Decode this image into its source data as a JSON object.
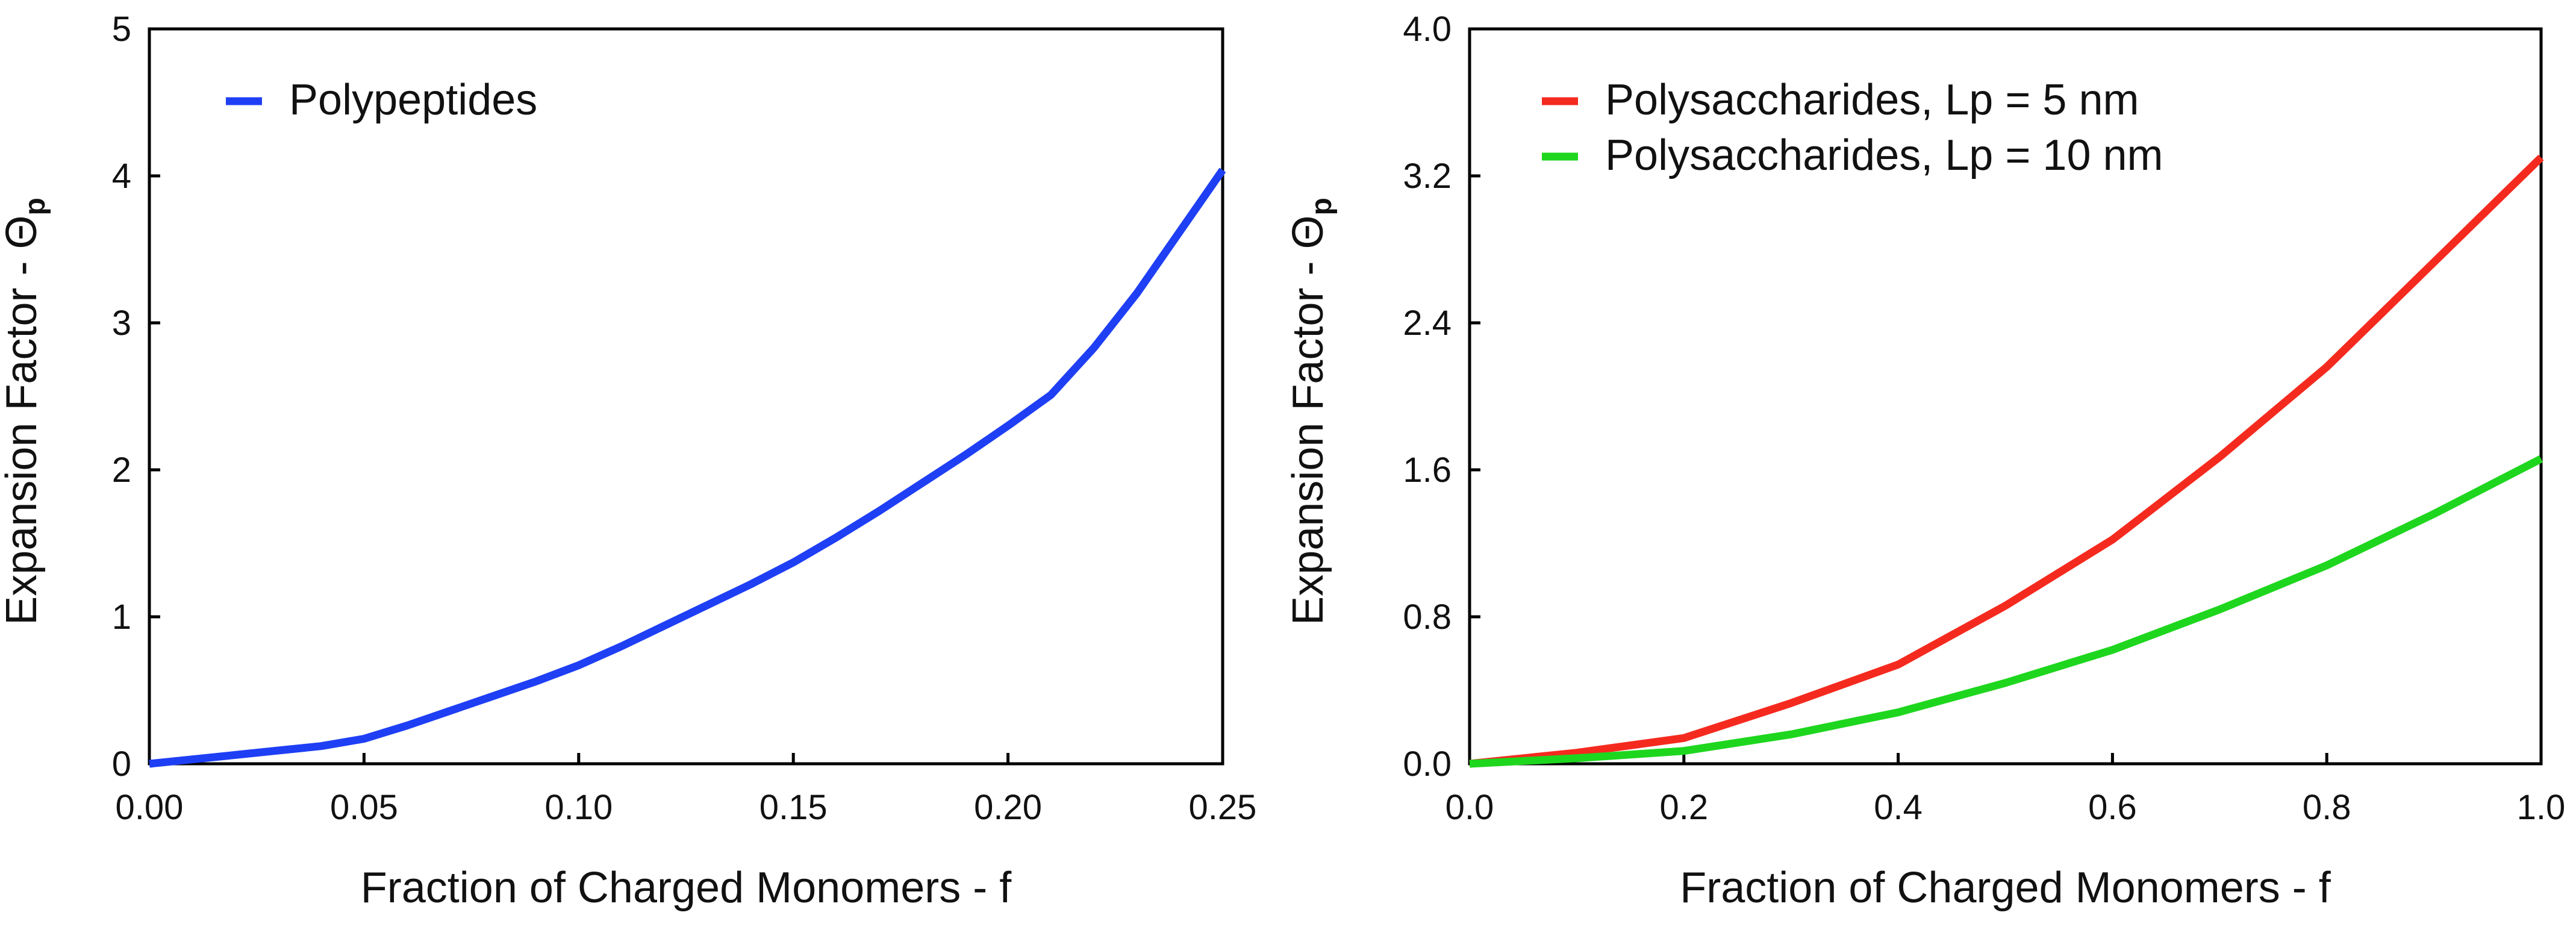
{
  "chart_data": [
    {
      "type": "line",
      "xlabel": "Fraction of Charged Monomers - f",
      "ylabel": "Expansion Factor - Θ",
      "ylabel_sub": "p",
      "xlim": [
        0,
        0.25
      ],
      "ylim": [
        0,
        5
      ],
      "xticks": [
        "0.00",
        "0.05",
        "0.10",
        "0.15",
        "0.20",
        "0.25"
      ],
      "yticks": [
        "0",
        "1",
        "2",
        "3",
        "4",
        "5"
      ],
      "grid": false,
      "legend_position": "top-left",
      "series": [
        {
          "name": "Polypeptides",
          "color": "#1f3ff5",
          "x": [
            0.0,
            0.01,
            0.02,
            0.03,
            0.04,
            0.05,
            0.06,
            0.07,
            0.08,
            0.09,
            0.1,
            0.11,
            0.12,
            0.13,
            0.14,
            0.15,
            0.16,
            0.17,
            0.18,
            0.19,
            0.2,
            0.21,
            0.22,
            0.23,
            0.24,
            0.25
          ],
          "y": [
            0.0,
            0.03,
            0.06,
            0.09,
            0.12,
            0.17,
            0.26,
            0.36,
            0.46,
            0.56,
            0.67,
            0.8,
            0.94,
            1.08,
            1.22,
            1.37,
            1.54,
            1.72,
            1.91,
            2.1,
            2.3,
            2.51,
            2.83,
            3.2,
            3.62,
            4.04
          ]
        }
      ]
    },
    {
      "type": "line",
      "xlabel": "Fraction of Charged Monomers - f",
      "ylabel": "Expansion Factor - Θ",
      "ylabel_sub": "p",
      "xlim": [
        0,
        1
      ],
      "ylim": [
        0,
        4
      ],
      "xticks": [
        "0.0",
        "0.2",
        "0.4",
        "0.6",
        "0.8",
        "1.0"
      ],
      "yticks": [
        "0.0",
        "0.8",
        "1.6",
        "2.4",
        "3.2",
        "4.0"
      ],
      "grid": false,
      "legend_position": "top-left",
      "series": [
        {
          "name": "Polysaccharides, Lp = 5 nm",
          "color": "#f52a1f",
          "x": [
            0.0,
            0.1,
            0.2,
            0.3,
            0.4,
            0.5,
            0.6,
            0.7,
            0.8,
            0.9,
            1.0
          ],
          "y": [
            0.0,
            0.06,
            0.14,
            0.33,
            0.54,
            0.86,
            1.22,
            1.67,
            2.16,
            2.73,
            3.3
          ]
        },
        {
          "name": "Polysaccharides, Lp = 10 nm",
          "color": "#1ed61e",
          "x": [
            0.0,
            0.1,
            0.2,
            0.3,
            0.4,
            0.5,
            0.6,
            0.7,
            0.8,
            0.9,
            1.0
          ],
          "y": [
            0.0,
            0.03,
            0.07,
            0.16,
            0.28,
            0.44,
            0.62,
            0.84,
            1.08,
            1.36,
            1.66
          ]
        }
      ]
    }
  ]
}
